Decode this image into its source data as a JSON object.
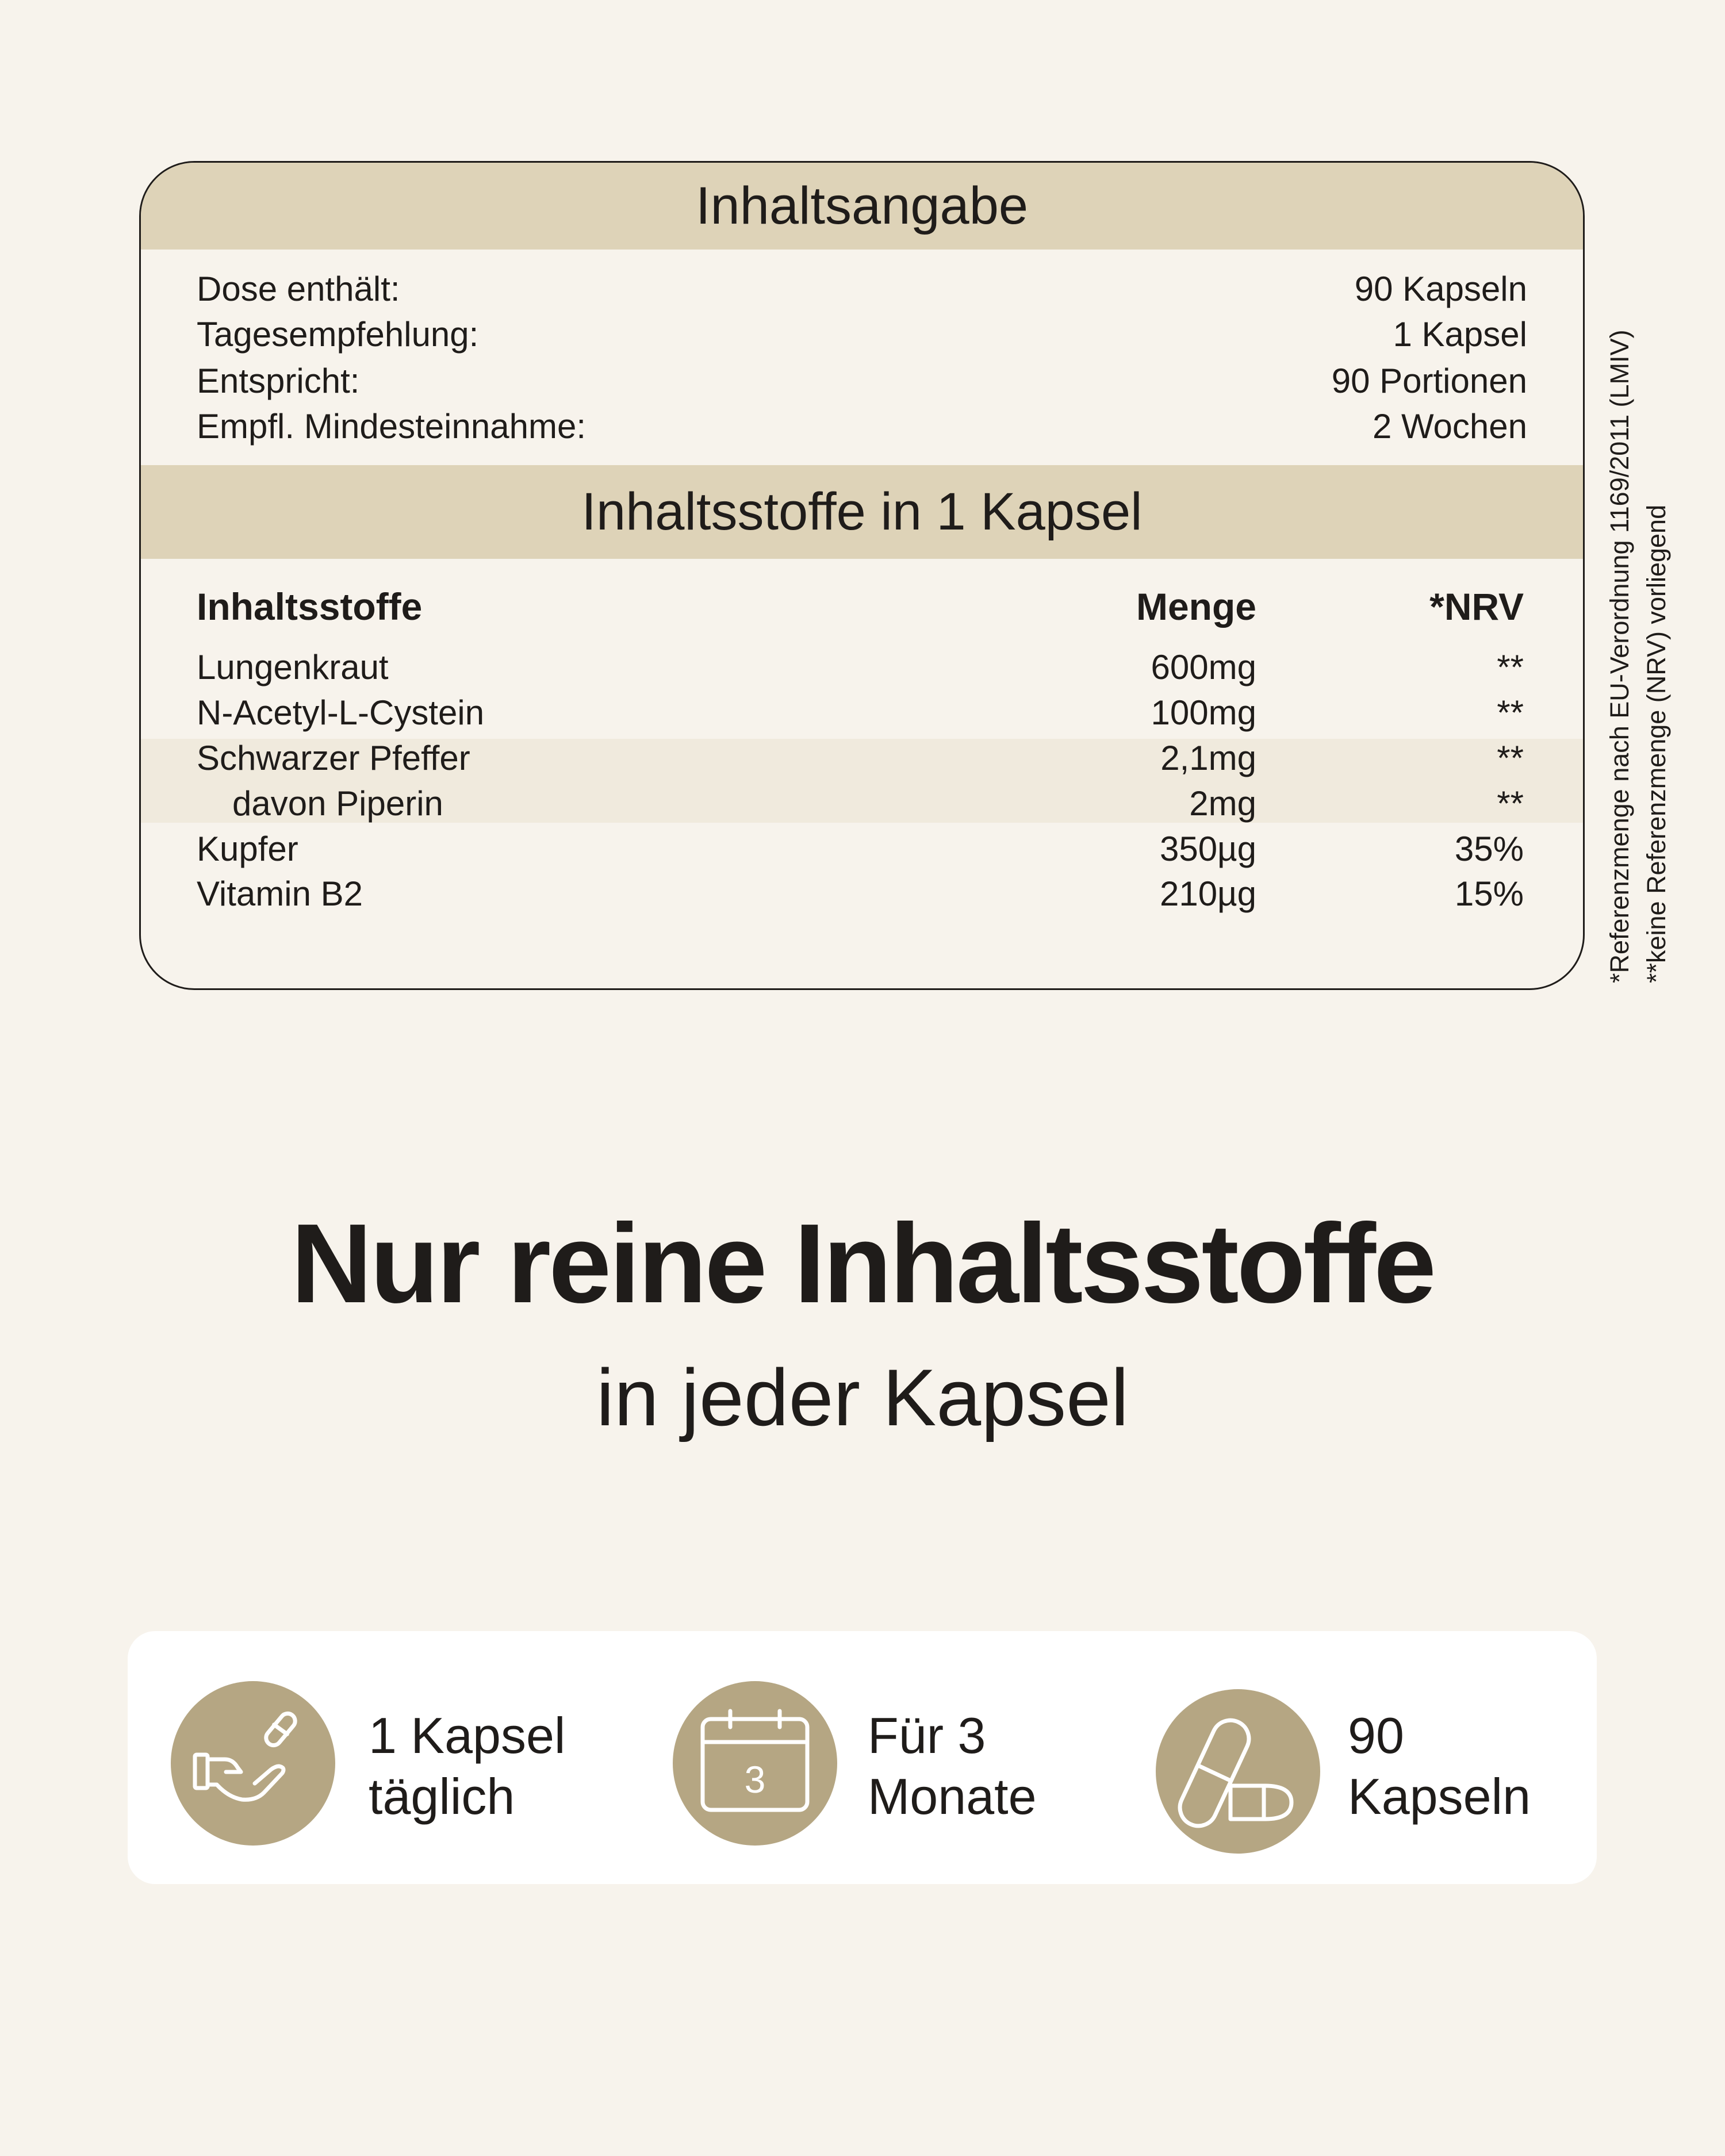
{
  "summary": {
    "title": "Inhaltsangabe",
    "rows": [
      {
        "label": "Dose enthält:",
        "value": "90 Kapseln"
      },
      {
        "label": "Tagesempfehlung:",
        "value": "1 Kapsel"
      },
      {
        "label": "Entspricht:",
        "value": "90 Portionen"
      },
      {
        "label": "Empfl. Mindesteinnahme:",
        "value": "2 Wochen"
      }
    ]
  },
  "ingredients": {
    "title": "Inhaltsstoffe in 1 Kapsel",
    "headers": {
      "name": "Inhaltsstoffe",
      "amount": "Menge",
      "nrv": "*NRV"
    },
    "rows": [
      {
        "name": "Lungenkraut",
        "amount": "600mg",
        "nrv": "**"
      },
      {
        "name": "N-Acetyl-L-Cystein",
        "amount": "100mg",
        "nrv": "**"
      },
      {
        "name": "Schwarzer Pfeffer",
        "amount": "2,1mg",
        "nrv": "**"
      },
      {
        "name": "davon Piperin",
        "amount": "2mg",
        "nrv": "**"
      },
      {
        "name": "Kupfer",
        "amount": "350µg",
        "nrv": "35%"
      },
      {
        "name": "Vitamin B2",
        "amount": "210µg",
        "nrv": "15%"
      }
    ]
  },
  "footnotes": [
    "*Referenzmenge nach EU-Verordnung 1169/2011 (LMIV)",
    "**keine Referenzmenge (NRV) vorliegend"
  ],
  "hero": {
    "title": "Nur reine Inhaltsstoffe",
    "subtitle": "in jeder Kapsel"
  },
  "features": [
    {
      "icon": "hand-capsule-icon",
      "line1": "1 Kapsel",
      "line2": "täglich"
    },
    {
      "icon": "calendar-icon",
      "calendar_number": "3",
      "line1": "Für 3",
      "line2": "Monate"
    },
    {
      "icon": "capsules-icon",
      "line1": "90",
      "line2": "Kapseln"
    }
  ],
  "colors": {
    "background": "#f7f3ec",
    "band": "#ded3b8",
    "icon_circle": "#b5a683",
    "highlight_row": "#f0eadd"
  }
}
